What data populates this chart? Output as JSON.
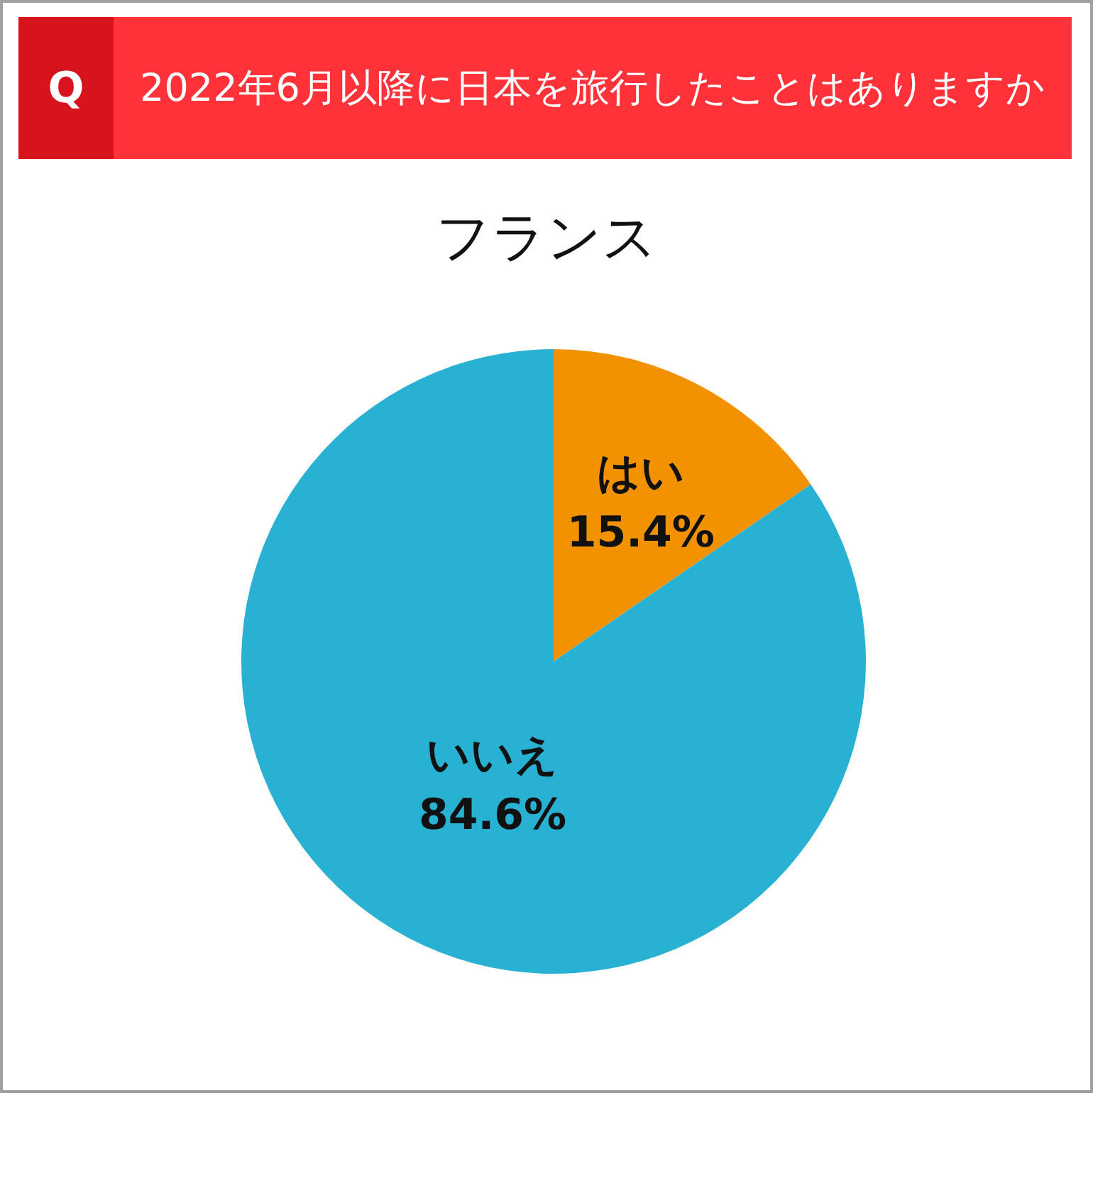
{
  "chart_data": {
    "type": "pie",
    "title": "2022年6月以降に日本を旅行したことはありますか",
    "subtitle": "フランス",
    "annotations": [
      "Q"
    ],
    "categories": [
      "はい",
      "いいえ"
    ],
    "values": [
      15.4,
      84.6
    ],
    "value_labels": [
      "15.4%",
      "84.6%"
    ],
    "colors": [
      "#f39200",
      "#29b1d3"
    ],
    "legend": false
  }
}
